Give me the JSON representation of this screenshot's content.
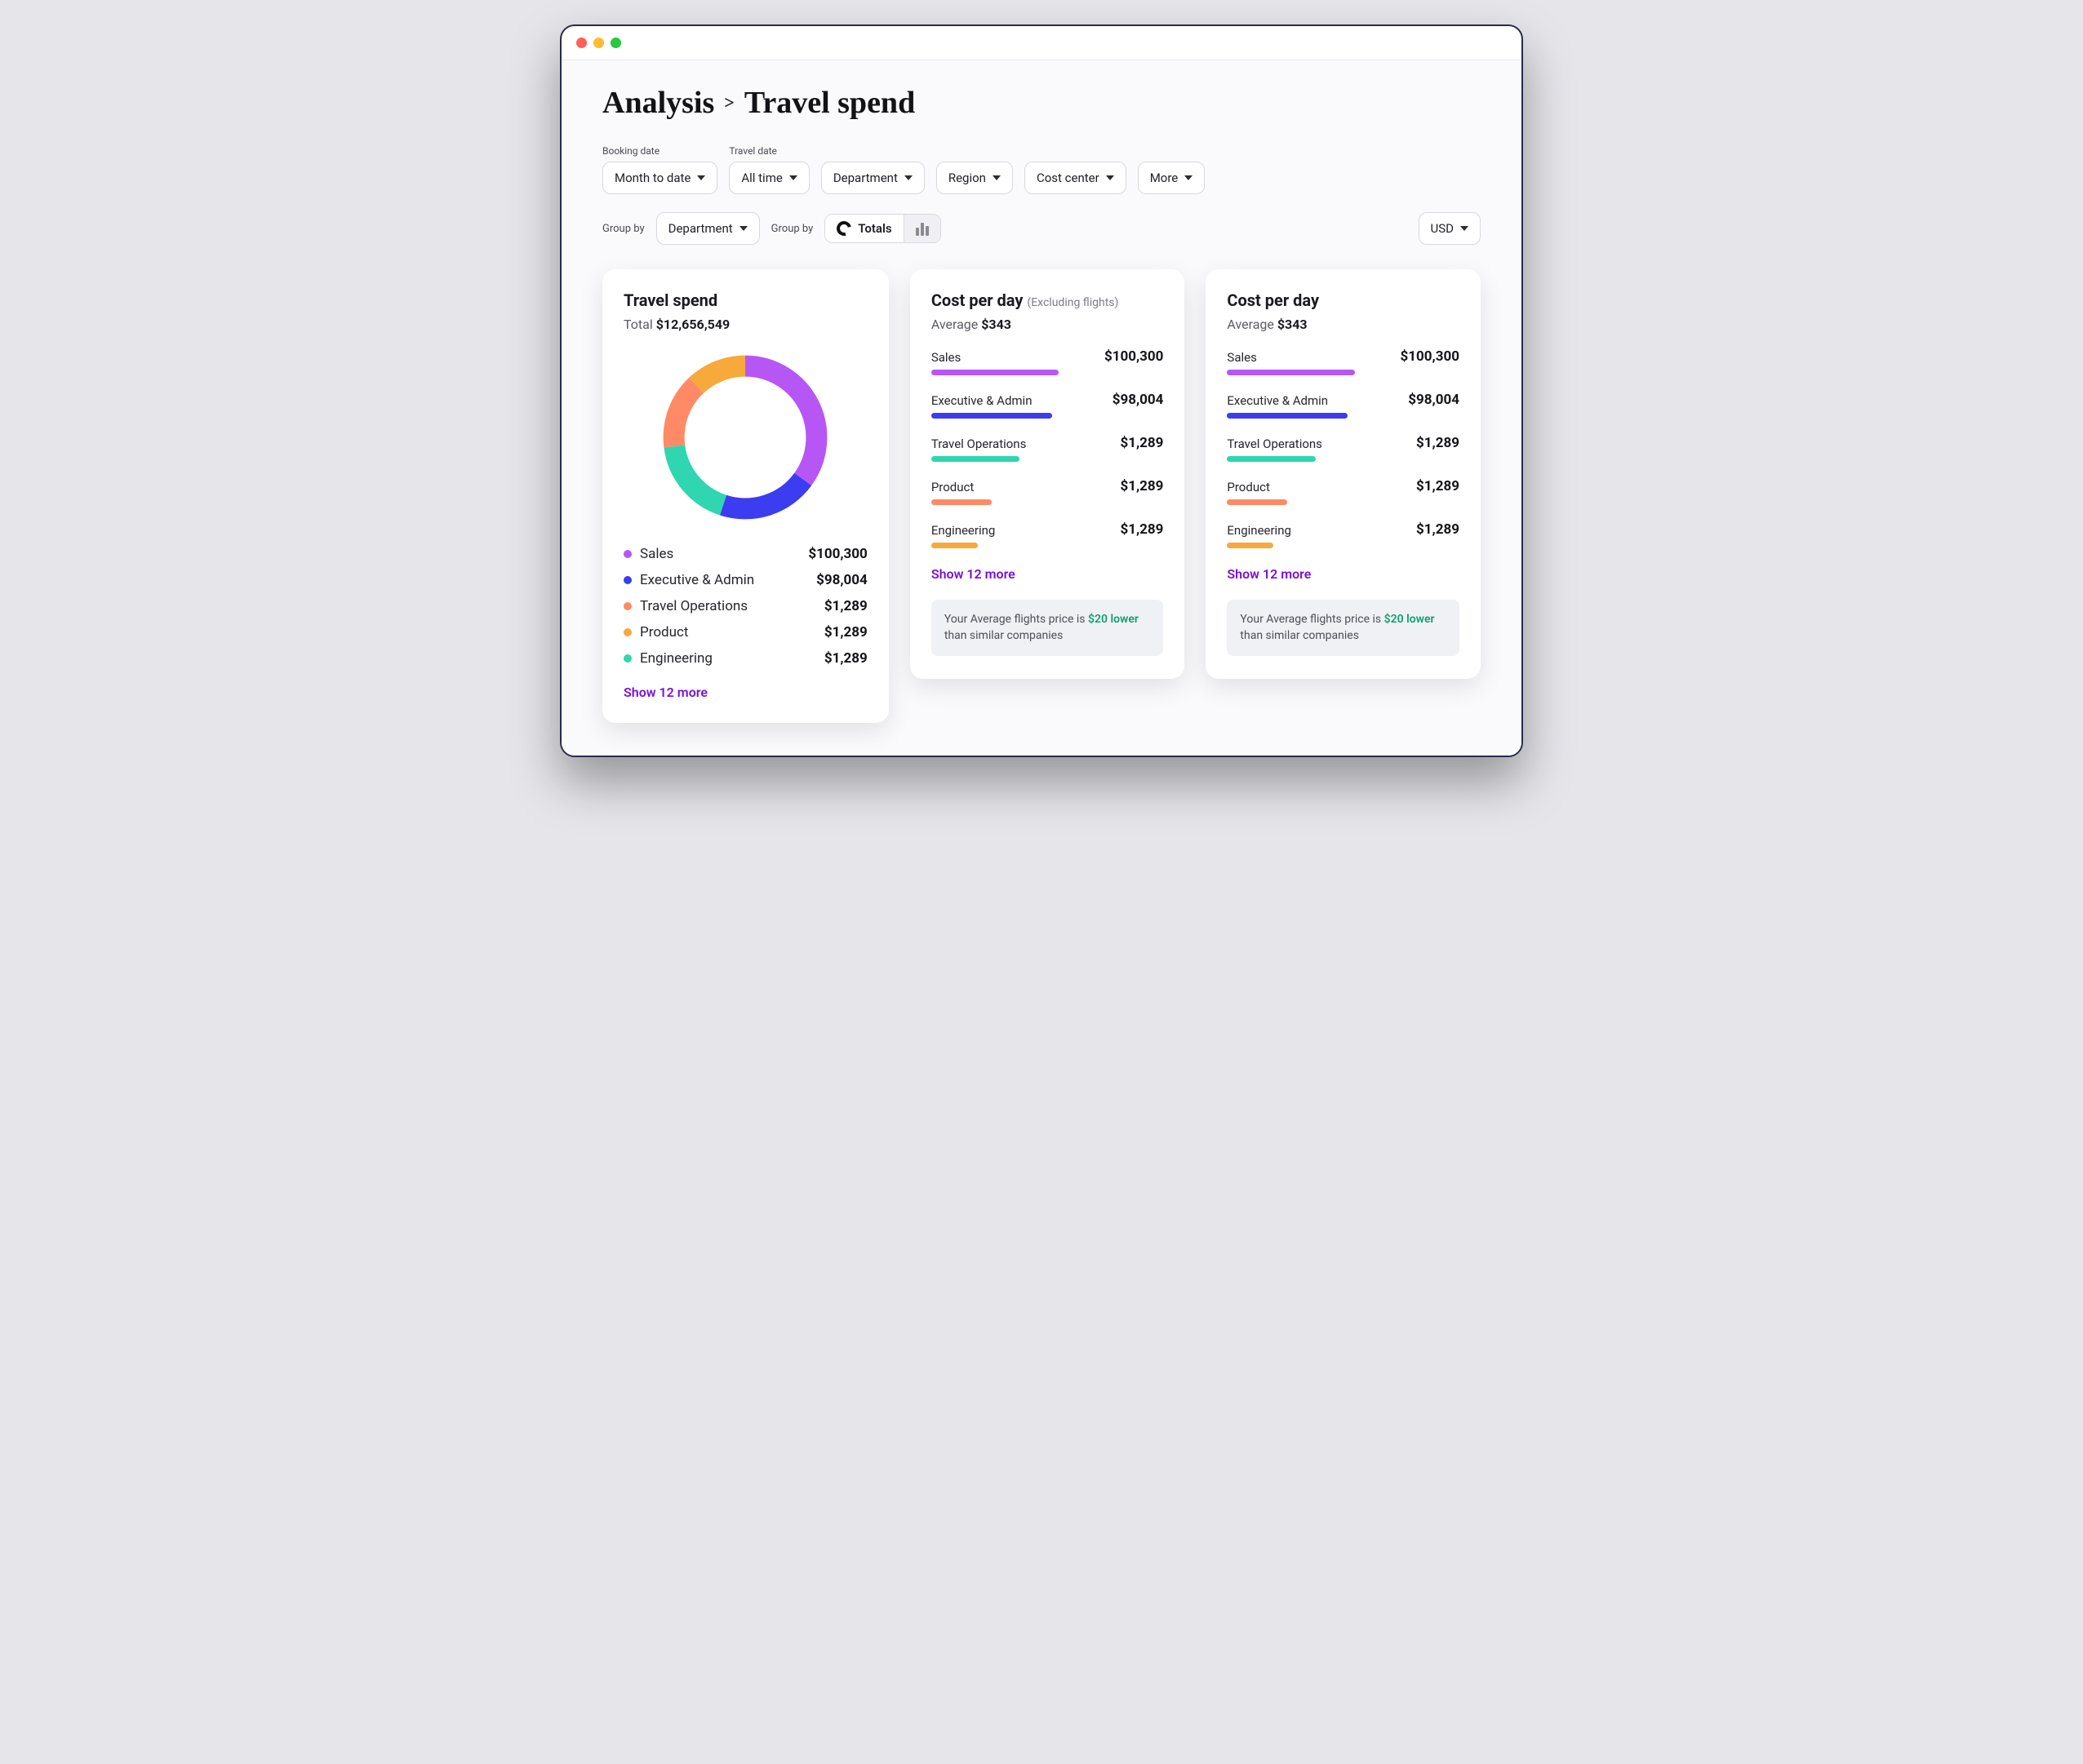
{
  "colors": {
    "purple": "#b657f5",
    "indigo": "#3c3cf0",
    "teal": "#2fd6b0",
    "orange": "#ff8a65",
    "amber": "#f7a93b",
    "show_more": "#7a10d6",
    "note_good": "#0e9f6e",
    "card_bg": "#ffffff",
    "page_bg": "#fafafc",
    "border": "#d8d8de"
  },
  "breadcrumb": {
    "root": "Analysis",
    "leaf": "Travel spend",
    "sep": ">"
  },
  "filters": {
    "booking_date": {
      "label": "Booking date",
      "value": "Month to date"
    },
    "travel_date": {
      "label": "Travel date",
      "value": "All time"
    },
    "department": {
      "value": "Department"
    },
    "region": {
      "value": "Region"
    },
    "cost_center": {
      "value": "Cost center"
    },
    "more": {
      "value": "More"
    }
  },
  "groupby": {
    "label": "Group by",
    "dropdown_value": "Department",
    "view_label": "Group by",
    "totals_label": "Totals"
  },
  "currency": {
    "value": "USD"
  },
  "travel_spend_card": {
    "title": "Travel spend",
    "total_label": "Total",
    "total_value": "$12,656,549",
    "show_more_label": "Show 12 more",
    "donut": {
      "type": "donut",
      "size": 230,
      "thickness": 26,
      "background_color": "#ffffff",
      "segments": [
        {
          "label": "Sales",
          "value": 35,
          "color": "#b657f5"
        },
        {
          "label": "Executive & Admin",
          "value": 20,
          "color": "#3c3cf0"
        },
        {
          "label": "Travel Operations",
          "value": 18,
          "color": "#2fd6b0"
        },
        {
          "label": "Product",
          "value": 15,
          "color": "#ff8a65"
        },
        {
          "label": "Engineering",
          "value": 12,
          "color": "#f7a93b"
        }
      ]
    },
    "legend": [
      {
        "label": "Sales",
        "amount": "$100,300",
        "dot_color": "#b657f5"
      },
      {
        "label": "Executive & Admin",
        "amount": "$98,004",
        "dot_color": "#3c3cf0"
      },
      {
        "label": "Travel Operations",
        "amount": "$1,289",
        "dot_color": "#ff8a65"
      },
      {
        "label": "Product",
        "amount": "$1,289",
        "dot_color": "#f7a93b"
      },
      {
        "label": "Engineering",
        "amount": "$1,289",
        "dot_color": "#2fd6b0"
      }
    ]
  },
  "cost_per_day_cards": [
    {
      "title": "Cost per day",
      "subtitle": "(Excluding flights)",
      "avg_label": "Average",
      "avg_value": "$343",
      "show_more_label": "Show 12 more",
      "bars": [
        {
          "label": "Sales",
          "amount": "$100,300",
          "width_pct": 55,
          "color": "#b657f5"
        },
        {
          "label": "Executive & Admin",
          "amount": "$98,004",
          "width_pct": 52,
          "color": "#3c3cf0"
        },
        {
          "label": "Travel Operations",
          "amount": "$1,289",
          "width_pct": 38,
          "color": "#2fd6b0"
        },
        {
          "label": "Product",
          "amount": "$1,289",
          "width_pct": 26,
          "color": "#ff8a65"
        },
        {
          "label": "Engineering",
          "amount": "$1,289",
          "width_pct": 20,
          "color": "#f7a93b"
        }
      ],
      "note_prefix": "Your Average flights price is ",
      "note_highlight": "$20 lower",
      "note_suffix": " than similar companies"
    },
    {
      "title": "Cost per day",
      "subtitle": "",
      "avg_label": "Average",
      "avg_value": "$343",
      "show_more_label": "Show 12 more",
      "bars": [
        {
          "label": "Sales",
          "amount": "$100,300",
          "width_pct": 55,
          "color": "#b657f5"
        },
        {
          "label": "Executive & Admin",
          "amount": "$98,004",
          "width_pct": 52,
          "color": "#3c3cf0"
        },
        {
          "label": "Travel Operations",
          "amount": "$1,289",
          "width_pct": 38,
          "color": "#2fd6b0"
        },
        {
          "label": "Product",
          "amount": "$1,289",
          "width_pct": 26,
          "color": "#ff8a65"
        },
        {
          "label": "Engineering",
          "amount": "$1,289",
          "width_pct": 20,
          "color": "#f7a93b"
        }
      ],
      "note_prefix": "Your Average flights price is ",
      "note_highlight": "$20 lower",
      "note_suffix": " than similar companies"
    }
  ]
}
